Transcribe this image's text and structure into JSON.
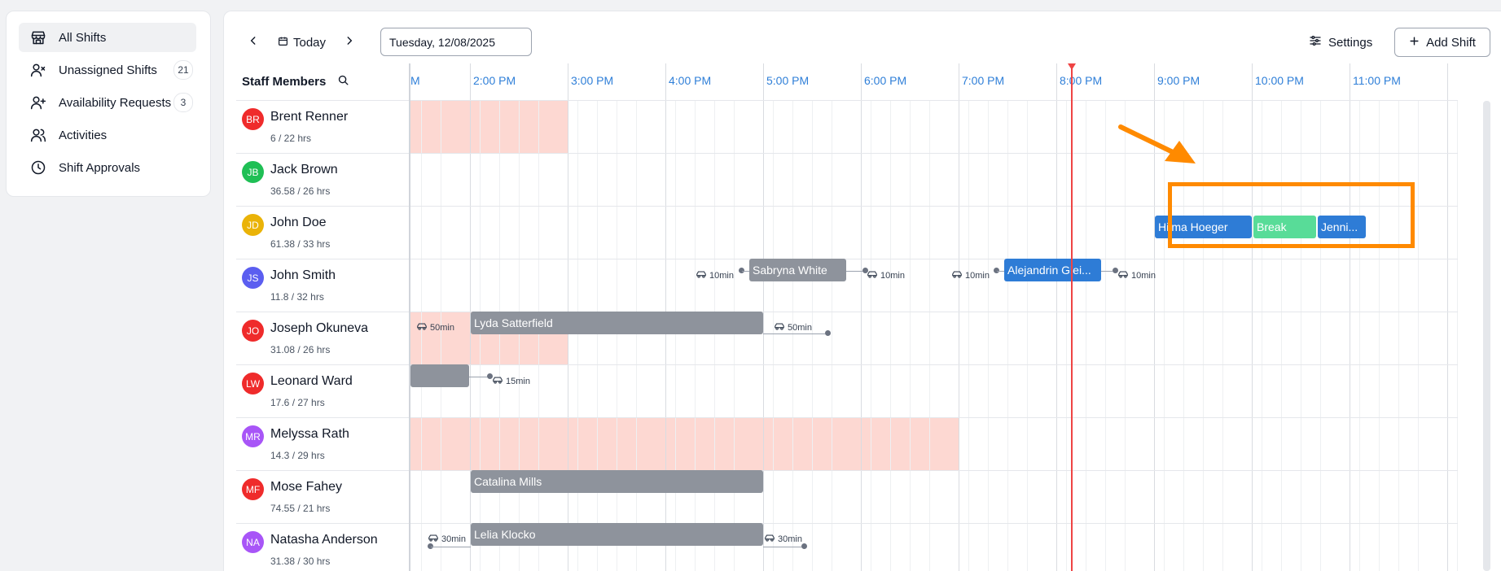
{
  "sidebar": {
    "items": [
      {
        "label": "All Shifts",
        "icon": "store-icon",
        "active": true
      },
      {
        "label": "Unassigned Shifts",
        "icon": "user-x-icon",
        "badge": "21"
      },
      {
        "label": "Availability Requests",
        "icon": "user-plus-icon",
        "badge": "3"
      },
      {
        "label": "Activities",
        "icon": "users-icon"
      },
      {
        "label": "Shift Approvals",
        "icon": "clock-icon"
      }
    ]
  },
  "toolbar": {
    "today_label": "Today",
    "date_value": "Tuesday, 12/08/2025",
    "settings_label": "Settings",
    "add_shift_label": "Add Shift"
  },
  "grid": {
    "staff_header": "Staff Members",
    "time_labels": [
      "M",
      "2:00 PM",
      "3:00 PM",
      "4:00 PM",
      "5:00 PM",
      "6:00 PM",
      "7:00 PM",
      "8:00 PM",
      "9:00 PM",
      "10:00 PM",
      "11:00 PM"
    ],
    "now_time": "8:00 PM"
  },
  "staff": [
    {
      "initials": "BR",
      "name": "Brent Renner",
      "hours": "6 / 22 hrs",
      "color": "#ef2b2b"
    },
    {
      "initials": "JB",
      "name": "Jack Brown",
      "hours": "36.58 / 26 hrs",
      "color": "#1fbf55"
    },
    {
      "initials": "JD",
      "name": "John Doe",
      "hours": "61.38 / 33 hrs",
      "color": "#eab308"
    },
    {
      "initials": "JS",
      "name": "John Smith",
      "hours": "11.8 / 32 hrs",
      "color": "#5b5ef0"
    },
    {
      "initials": "JO",
      "name": "Joseph Okuneva",
      "hours": "31.08 / 26 hrs",
      "color": "#ef2b2b"
    },
    {
      "initials": "LW",
      "name": "Leonard Ward",
      "hours": "17.6 / 27 hrs",
      "color": "#ef2b2b"
    },
    {
      "initials": "MR",
      "name": "Melyssa Rath",
      "hours": "14.3 / 29 hrs",
      "color": "#a855f7"
    },
    {
      "initials": "MF",
      "name": "Mose Fahey",
      "hours": "74.55 / 21 hrs",
      "color": "#ef2b2b"
    },
    {
      "initials": "NA",
      "name": "Natasha Anderson",
      "hours": "31.38 / 30 hrs",
      "color": "#a855f7"
    }
  ],
  "shifts": {
    "jd_hilma": "Hilma Hoeger",
    "jd_break": "Break",
    "jd_jenni": "Jenni...",
    "js_sabryna": "Sabryna White",
    "js_alejandrin": "Alejandrin Glei...",
    "jo_lyda": "Lyda Satterfield",
    "mf_catalina": "Catalina Mills",
    "na_lelia": "Lelia Klocko"
  },
  "travel": {
    "js_t1": "10min",
    "js_t2": "10min",
    "js_t3": "10min",
    "js_t4": "10min",
    "jo_t1": "50min",
    "jo_t2": "50min",
    "lw_t1": "15min",
    "na_t1": "30min",
    "na_t2": "30min"
  },
  "colors": {
    "accent_blue": "#2e7cd6",
    "break_green": "#58dc98",
    "shift_gray": "#8e939c",
    "unavailable_pink": "#fdd8d2",
    "now_red": "#ef4444",
    "annotation_orange": "#ff8a00"
  }
}
